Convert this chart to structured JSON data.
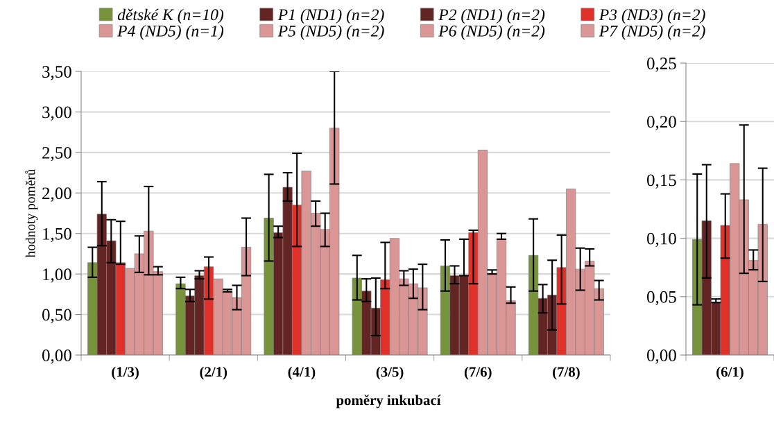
{
  "chart_data": [
    {
      "type": "bar",
      "xlabel": "poměry inkubací",
      "ylabel": "hodnoty poměrů",
      "categories": [
        "(1/3)",
        "(2/1)",
        "(4/1)",
        "(3/5)",
        "(7/6)",
        "(7/8)"
      ],
      "ylim": [
        0,
        3.5
      ],
      "yticks": [
        {
          "value": 0,
          "label": "0,00"
        },
        {
          "value": 0.5,
          "label": "0,50"
        },
        {
          "value": 1,
          "label": "1,00"
        },
        {
          "value": 1.5,
          "label": "1,50"
        },
        {
          "value": 2,
          "label": "2,00"
        },
        {
          "value": 2.5,
          "label": "2,50"
        },
        {
          "value": 3,
          "label": "3,00"
        },
        {
          "value": 3.5,
          "label": "3,50"
        }
      ],
      "grid": "y",
      "legend": "top",
      "series": [
        {
          "name": "dětské K (n=10)",
          "color": "#77933c",
          "values": [
            1.14,
            0.88,
            1.69,
            0.95,
            1.1,
            1.23
          ],
          "errors": [
            [
              0.96,
              1.33
            ],
            [
              0.82,
              0.96
            ],
            [
              1.16,
              2.23
            ],
            [
              0.68,
              1.23
            ],
            [
              0.79,
              1.42
            ],
            [
              0.79,
              1.68
            ]
          ]
        },
        {
          "name": "P1 (ND1) (n=2)",
          "color": "#632523",
          "values": [
            1.74,
            0.73,
            1.51,
            0.79,
            0.98,
            0.7
          ],
          "errors": [
            [
              1.35,
              2.14
            ],
            [
              0.66,
              0.81
            ],
            [
              1.45,
              1.59
            ],
            [
              0.66,
              0.94
            ],
            [
              0.88,
              1.1
            ],
            [
              0.52,
              0.87
            ]
          ]
        },
        {
          "name": "P2 (ND1) (n=2)",
          "color": "#632523",
          "values": [
            1.41,
            0.98,
            2.07,
            0.58,
            0.98,
            0.74
          ],
          "errors": [
            [
              1.14,
              1.67
            ],
            [
              0.94,
              1.04
            ],
            [
              1.9,
              2.25
            ],
            [
              0.24,
              0.95
            ],
            [
              0.98,
              1.43
            ],
            [
              0.31,
              1.17
            ]
          ]
        },
        {
          "name": "P3 (ND3) (n=2)",
          "color": "#e0302a",
          "values": [
            1.14,
            1.09,
            1.85,
            0.93,
            1.51,
            1.08
          ],
          "errors": [
            [
              1.12,
              1.65
            ],
            [
              0.69,
              1.21
            ],
            [
              1.34,
              2.49
            ],
            [
              0.82,
              1.39
            ],
            [
              0.88,
              1.54
            ],
            [
              0.63,
              1.48
            ]
          ]
        },
        {
          "name": "P4 (ND5) (n=1)",
          "color": "#d99694",
          "values": [
            1.07,
            0.94,
            2.27,
            1.44,
            2.53,
            2.05
          ]
        },
        {
          "name": "P5 (ND5) (n=2)",
          "color": "#d99694",
          "values": [
            1.25,
            0.79,
            1.75,
            0.94,
            1.01,
            1.06
          ],
          "errors": [
            [
              1.02,
              1.47
            ],
            [
              0.78,
              0.81
            ],
            [
              1.59,
              1.9
            ],
            [
              0.86,
              1.04
            ],
            [
              1.0,
              1.05
            ],
            [
              0.8,
              1.32
            ]
          ]
        },
        {
          "name": "P6 (ND5) (n=2)",
          "color": "#d99694",
          "values": [
            1.53,
            0.71,
            1.55,
            0.88,
            1.43,
            1.16
          ],
          "errors": [
            [
              0.99,
              2.08
            ],
            [
              0.56,
              0.86
            ],
            [
              1.34,
              1.75
            ],
            [
              0.7,
              1.06
            ],
            [
              1.43,
              1.5
            ],
            [
              1.1,
              1.31
            ]
          ]
        },
        {
          "name": "P7 (ND5) (n=2)",
          "color": "#d99694",
          "values": [
            1.03,
            1.33,
            2.8,
            0.83,
            0.67,
            0.82
          ],
          "errors": [
            [
              0.99,
              1.09
            ],
            [
              0.98,
              1.69
            ],
            [
              2.11,
              3.5
            ],
            [
              0.56,
              1.12
            ],
            [
              0.64,
              0.84
            ],
            [
              0.68,
              0.92
            ]
          ]
        }
      ]
    },
    {
      "type": "bar",
      "categories": [
        "(6/1)"
      ],
      "ylim": [
        0,
        0.25
      ],
      "yticks": [
        {
          "value": 0,
          "label": "0,00"
        },
        {
          "value": 0.05,
          "label": "0,05"
        },
        {
          "value": 0.1,
          "label": "0,10"
        },
        {
          "value": 0.15,
          "label": "0,15"
        },
        {
          "value": 0.2,
          "label": "0,20"
        },
        {
          "value": 0.25,
          "label": "0,25"
        }
      ],
      "grid": "y",
      "series": [
        {
          "color": "#77933c",
          "values": [
            0.099
          ],
          "errors": [
            [
              0.043,
              0.155
            ]
          ]
        },
        {
          "color": "#632523",
          "values": [
            0.115
          ],
          "errors": [
            [
              0.066,
              0.163
            ]
          ]
        },
        {
          "color": "#632523",
          "values": [
            0.045
          ],
          "errors": [
            [
              0.045,
              0.048
            ]
          ]
        },
        {
          "color": "#e0302a",
          "values": [
            0.111
          ],
          "errors": [
            [
              0.083,
              0.138
            ]
          ]
        },
        {
          "color": "#d99694",
          "values": [
            0.164
          ]
        },
        {
          "color": "#d99694",
          "values": [
            0.133
          ],
          "errors": [
            [
              0.07,
              0.197
            ]
          ]
        },
        {
          "color": "#d99694",
          "values": [
            0.081
          ],
          "errors": [
            [
              0.073,
              0.09
            ]
          ]
        },
        {
          "color": "#d99694",
          "values": [
            0.112
          ],
          "errors": [
            [
              0.063,
              0.16
            ]
          ]
        }
      ]
    }
  ]
}
